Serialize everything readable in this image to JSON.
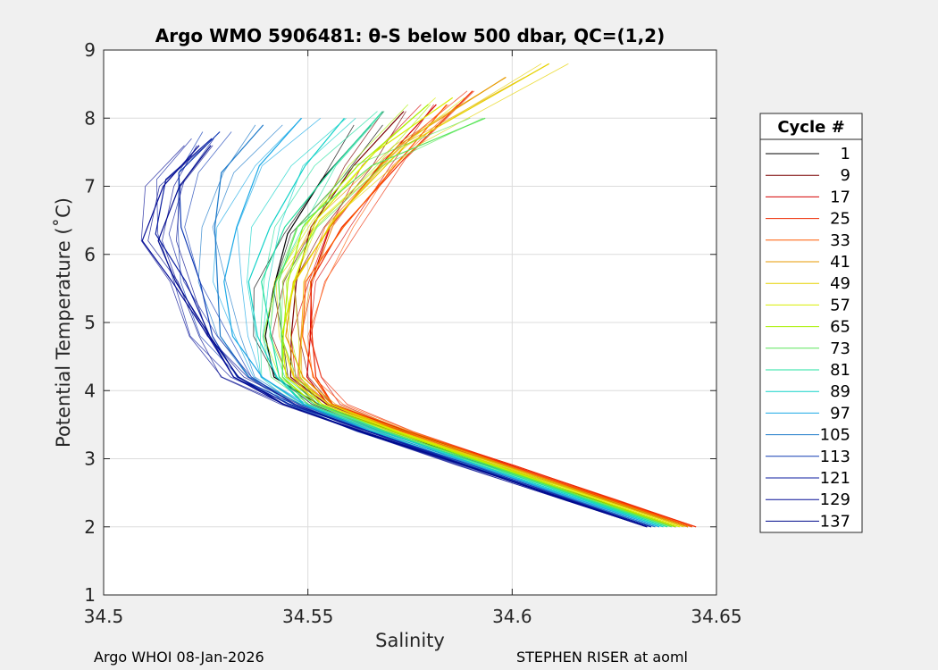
{
  "chart_data": {
    "type": "line",
    "title": "Argo WMO 5906481: θ-S below 500 dbar,  QC=(1,2)",
    "xlabel": "Salinity",
    "ylabel": "Potential Temperature (˚C)",
    "xlim": [
      34.5,
      34.65
    ],
    "ylim": [
      1,
      9
    ],
    "xticks": [
      34.5,
      34.55,
      34.6,
      34.65
    ],
    "xtick_labels": [
      "34.5",
      "34.55",
      "34.6",
      "34.65"
    ],
    "yticks": [
      1,
      2,
      3,
      4,
      5,
      6,
      7,
      8,
      9
    ],
    "ytick_labels": [
      "1",
      "2",
      "3",
      "4",
      "5",
      "6",
      "7",
      "8",
      "9"
    ],
    "grid": true,
    "legend": {
      "title": "Cycle #",
      "placement": "right-outside",
      "entries": [
        "1",
        "9",
        "17",
        "25",
        "33",
        "41",
        "49",
        "57",
        "65",
        "73",
        "81",
        "89",
        "97",
        "105",
        "113",
        "121",
        "129",
        "137"
      ],
      "colors": [
        "#000000",
        "#7a0000",
        "#d40000",
        "#ee2a00",
        "#ff5a00",
        "#e79a00",
        "#e6d200",
        "#d8ee00",
        "#a8f000",
        "#5ae65a",
        "#22e0a0",
        "#12d2c8",
        "#1aa8e6",
        "#1a78c8",
        "#123cb4",
        "#0c1ea0",
        "#060e96",
        "#000a8c"
      ]
    },
    "series": [
      {
        "name": "1",
        "color": "#000000",
        "x": [
          34.64,
          34.62,
          34.595,
          34.57,
          34.552,
          34.543,
          34.54,
          34.54,
          34.545,
          34.555,
          34.565
        ],
        "y": [
          2.0,
          2.4,
          2.9,
          3.4,
          3.8,
          4.2,
          4.8,
          5.5,
          6.3,
          7.1,
          7.9
        ]
      },
      {
        "name": "9",
        "color": "#7a0000",
        "x": [
          34.643,
          34.623,
          34.598,
          34.573,
          34.555,
          34.547,
          34.545,
          34.546,
          34.552,
          34.562,
          34.572
        ],
        "y": [
          2.0,
          2.4,
          2.9,
          3.4,
          3.8,
          4.2,
          4.8,
          5.6,
          6.4,
          7.3,
          8.1
        ]
      },
      {
        "name": "17",
        "color": "#d40000",
        "x": [
          34.644,
          34.624,
          34.599,
          34.574,
          34.556,
          34.55,
          34.549,
          34.551,
          34.557,
          34.567,
          34.58
        ],
        "y": [
          2.0,
          2.4,
          2.9,
          3.4,
          3.8,
          4.2,
          4.8,
          5.6,
          6.4,
          7.3,
          8.2
        ]
      },
      {
        "name": "25",
        "color": "#ee2a00",
        "x": [
          34.645,
          34.625,
          34.6,
          34.575,
          34.557,
          34.551,
          34.55,
          34.552,
          34.559,
          34.572,
          34.59
        ],
        "y": [
          2.0,
          2.4,
          2.9,
          3.4,
          3.8,
          4.2,
          4.8,
          5.6,
          6.4,
          7.4,
          8.4
        ]
      },
      {
        "name": "33",
        "color": "#ff5a00",
        "x": [
          34.644,
          34.624,
          34.599,
          34.574,
          34.556,
          34.55,
          34.549,
          34.551,
          34.558,
          34.57,
          34.585
        ],
        "y": [
          2.0,
          2.4,
          2.9,
          3.4,
          3.8,
          4.2,
          4.8,
          5.6,
          6.4,
          7.3,
          8.2
        ]
      },
      {
        "name": "41",
        "color": "#e79a00",
        "x": [
          34.643,
          34.623,
          34.598,
          34.573,
          34.555,
          34.548,
          34.546,
          34.547,
          34.555,
          34.572,
          34.6
        ],
        "y": [
          2.0,
          2.4,
          2.9,
          3.4,
          3.8,
          4.2,
          4.8,
          5.6,
          6.5,
          7.6,
          8.6
        ]
      },
      {
        "name": "49",
        "color": "#e6d200",
        "x": [
          34.642,
          34.622,
          34.597,
          34.572,
          34.554,
          34.547,
          34.545,
          34.546,
          34.555,
          34.575,
          34.61
        ],
        "y": [
          2.0,
          2.4,
          2.9,
          3.4,
          3.8,
          4.2,
          4.8,
          5.6,
          6.5,
          7.6,
          8.8
        ]
      },
      {
        "name": "57",
        "color": "#d8ee00",
        "x": [
          34.641,
          34.621,
          34.596,
          34.571,
          34.553,
          34.546,
          34.544,
          34.545,
          34.552,
          34.568,
          34.585
        ],
        "y": [
          2.0,
          2.4,
          2.9,
          3.4,
          3.8,
          4.2,
          4.8,
          5.6,
          6.5,
          7.5,
          8.3
        ]
      },
      {
        "name": "65",
        "color": "#a8f000",
        "x": [
          34.64,
          34.62,
          34.595,
          34.57,
          34.552,
          34.545,
          34.543,
          34.544,
          34.55,
          34.563,
          34.578
        ],
        "y": [
          2.0,
          2.4,
          2.9,
          3.4,
          3.8,
          4.2,
          4.8,
          5.6,
          6.4,
          7.3,
          8.2
        ]
      },
      {
        "name": "73",
        "color": "#5ae65a",
        "x": [
          34.639,
          34.619,
          34.594,
          34.569,
          34.551,
          34.544,
          34.542,
          34.543,
          34.549,
          34.565,
          34.592
        ],
        "y": [
          2.0,
          2.4,
          2.9,
          3.4,
          3.8,
          4.2,
          4.8,
          5.6,
          6.4,
          7.3,
          8.0
        ]
      },
      {
        "name": "81",
        "color": "#22e0a0",
        "x": [
          34.638,
          34.618,
          34.593,
          34.568,
          34.55,
          34.542,
          34.54,
          34.54,
          34.545,
          34.555,
          34.568
        ],
        "y": [
          2.0,
          2.4,
          2.9,
          3.4,
          3.8,
          4.2,
          4.8,
          5.6,
          6.4,
          7.3,
          8.1
        ]
      },
      {
        "name": "89",
        "color": "#12d2c8",
        "x": [
          34.637,
          34.617,
          34.592,
          34.567,
          34.549,
          34.541,
          34.538,
          34.537,
          34.54,
          34.548,
          34.56
        ],
        "y": [
          2.0,
          2.4,
          2.9,
          3.4,
          3.8,
          4.2,
          4.8,
          5.6,
          6.4,
          7.3,
          8.0
        ]
      },
      {
        "name": "97",
        "color": "#1aa8e6",
        "x": [
          34.636,
          34.616,
          34.591,
          34.566,
          34.548,
          34.538,
          34.533,
          34.53,
          34.531,
          34.538,
          34.55
        ],
        "y": [
          2.0,
          2.4,
          2.9,
          3.4,
          3.8,
          4.2,
          4.8,
          5.6,
          6.4,
          7.3,
          8.0
        ]
      },
      {
        "name": "105",
        "color": "#1a78c8",
        "x": [
          34.635,
          34.615,
          34.59,
          34.565,
          34.547,
          34.536,
          34.53,
          34.527,
          34.526,
          34.53,
          34.54
        ],
        "y": [
          2.0,
          2.4,
          2.9,
          3.4,
          3.8,
          4.2,
          4.8,
          5.6,
          6.4,
          7.2,
          7.9
        ]
      },
      {
        "name": "113",
        "color": "#123cb4",
        "x": [
          34.634,
          34.614,
          34.589,
          34.564,
          34.546,
          34.534,
          34.527,
          34.522,
          34.519,
          34.52,
          34.528
        ],
        "y": [
          2.0,
          2.4,
          2.9,
          3.4,
          3.8,
          4.2,
          4.8,
          5.6,
          6.4,
          7.2,
          7.8
        ]
      },
      {
        "name": "121",
        "color": "#0c1ea0",
        "x": [
          34.634,
          34.614,
          34.589,
          34.564,
          34.546,
          34.533,
          34.525,
          34.519,
          34.514,
          34.516,
          34.525
        ],
        "y": [
          2.0,
          2.4,
          2.9,
          3.4,
          3.8,
          4.2,
          4.8,
          5.6,
          6.3,
          7.1,
          7.7
        ]
      },
      {
        "name": "129",
        "color": "#060e96",
        "x": [
          34.633,
          34.613,
          34.588,
          34.563,
          34.545,
          34.532,
          34.524,
          34.517,
          34.511,
          34.514,
          34.522
        ],
        "y": [
          2.0,
          2.4,
          2.9,
          3.4,
          3.8,
          4.2,
          4.8,
          5.6,
          6.2,
          7.0,
          7.6
        ]
      },
      {
        "name": "137",
        "color": "#000a8c",
        "x": [
          34.633,
          34.613,
          34.588,
          34.563,
          34.545,
          34.532,
          34.525,
          34.519,
          34.514,
          34.517,
          34.526
        ],
        "y": [
          2.0,
          2.4,
          2.9,
          3.4,
          3.8,
          4.2,
          4.8,
          5.6,
          6.2,
          7.0,
          7.6
        ]
      }
    ]
  },
  "footer": {
    "left": "Argo WHOI 08-Jan-2026",
    "right": "STEPHEN RISER at aoml"
  }
}
